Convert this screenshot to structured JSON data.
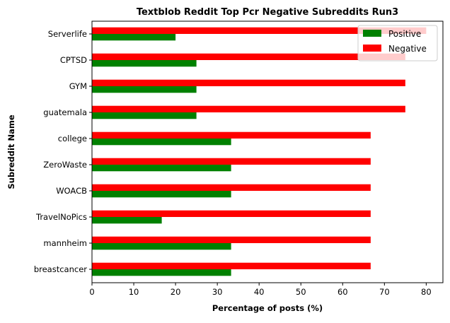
{
  "chart_data": {
    "type": "bar",
    "orientation": "horizontal",
    "title": "Textblob Reddit Top Pcr Negative Subreddits Run3",
    "xlabel": "Percentage of posts (%)",
    "ylabel": "Subreddit Name",
    "xlim": [
      0,
      84
    ],
    "xticks": [
      0,
      10,
      20,
      30,
      40,
      50,
      60,
      70,
      80
    ],
    "grid": false,
    "legend_position": "top-right",
    "categories": [
      "Serverlife",
      "CPTSD",
      "GYM",
      "guatemala",
      "college",
      "ZeroWaste",
      "WOACB",
      "TravelNoPics",
      "mannheim",
      "breastcancer"
    ],
    "series": [
      {
        "name": "Positive",
        "color": "#008000",
        "values": [
          20,
          25,
          25,
          25,
          33.3,
          33.3,
          33.3,
          16.7,
          33.3,
          33.3
        ]
      },
      {
        "name": "Negative",
        "color": "#ff0000",
        "values": [
          80,
          75,
          75,
          75,
          66.7,
          66.7,
          66.7,
          66.7,
          66.7,
          66.7
        ]
      }
    ]
  }
}
